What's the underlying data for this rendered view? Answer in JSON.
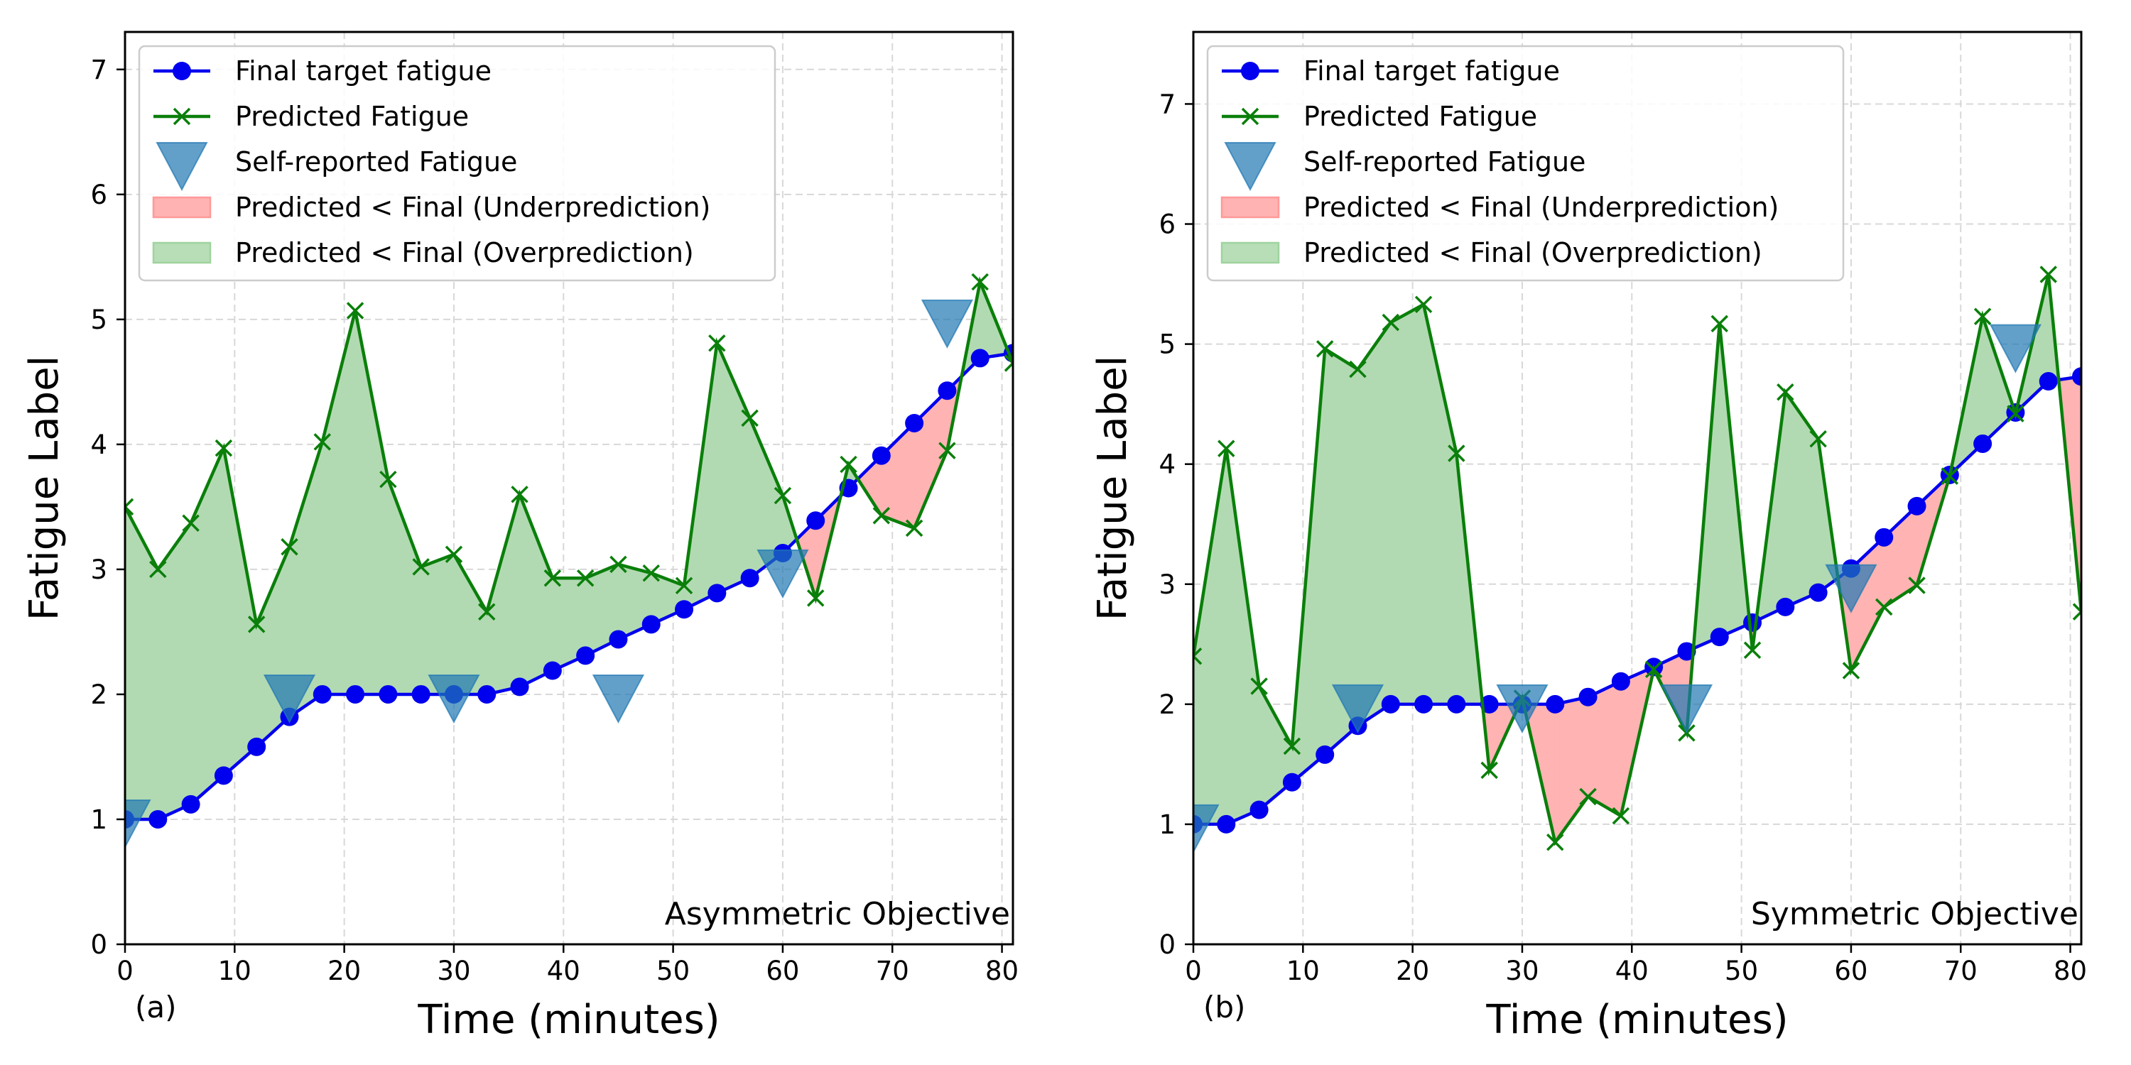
{
  "chart_data": [
    {
      "type": "line",
      "panel_label": "(a)",
      "annotation": "Asymmetric Objective",
      "xlabel": "Time (minutes)",
      "ylabel": "Fatigue Label",
      "xlim": [
        0,
        81
      ],
      "ylim": [
        0,
        7.3
      ],
      "xticks": [
        "0",
        "10",
        "20",
        "30",
        "40",
        "50",
        "60",
        "70",
        "80"
      ],
      "yticks": [
        "0",
        "1",
        "2",
        "3",
        "4",
        "5",
        "6",
        "7"
      ],
      "grid": true,
      "legend_position": "upper-left",
      "legend": [
        {
          "label": "Final target fatigue",
          "kind": "line-circle",
          "color": "#0000ee"
        },
        {
          "label": "Predicted Fatigue",
          "kind": "line-x",
          "color": "#008000"
        },
        {
          "label": "Self-reported Fatigue",
          "kind": "triangle",
          "color": "#1f77b4"
        },
        {
          "label": "Predicted < Final (Underprediction)",
          "kind": "patch",
          "color": "#ff9999"
        },
        {
          "label": "Predicted < Final (Overprediction)",
          "kind": "patch",
          "color": "#9fd39f"
        }
      ],
      "series": [
        {
          "name": "Final target fatigue",
          "x": [
            0,
            3,
            6,
            9,
            12,
            15,
            18,
            21,
            24,
            27,
            30,
            33,
            36,
            39,
            42,
            45,
            48,
            51,
            54,
            57,
            60,
            63,
            66,
            69,
            72,
            75,
            78,
            81
          ],
          "y": [
            1.0,
            1.0,
            1.12,
            1.35,
            1.58,
            1.82,
            2.0,
            2.0,
            2.0,
            2.0,
            2.0,
            2.0,
            2.06,
            2.19,
            2.31,
            2.44,
            2.56,
            2.68,
            2.81,
            2.93,
            3.13,
            3.39,
            3.65,
            3.91,
            4.17,
            4.43,
            4.69,
            4.73
          ]
        },
        {
          "name": "Predicted Fatigue",
          "x": [
            0,
            3,
            6,
            9,
            12,
            15,
            18,
            21,
            24,
            27,
            30,
            33,
            36,
            39,
            42,
            45,
            48,
            51,
            54,
            57,
            60,
            63,
            66,
            69,
            72,
            75,
            78,
            81
          ],
          "y": [
            3.5,
            3.0,
            3.37,
            3.97,
            2.56,
            3.18,
            4.02,
            5.07,
            3.72,
            3.02,
            3.12,
            2.66,
            3.6,
            2.93,
            2.93,
            3.04,
            2.97,
            2.87,
            4.81,
            4.21,
            3.59,
            2.77,
            3.84,
            3.43,
            3.33,
            3.95,
            5.3,
            4.65
          ]
        },
        {
          "name": "Self-reported Fatigue",
          "x": [
            0,
            15,
            30,
            45,
            60,
            75
          ],
          "y": [
            1.0,
            2.0,
            2.0,
            2.0,
            3.0,
            5.0
          ]
        }
      ]
    },
    {
      "type": "line",
      "panel_label": "(b)",
      "annotation": "Symmetric Objective",
      "xlabel": "Time (minutes)",
      "ylabel": "Fatigue Label",
      "xlim": [
        0,
        81
      ],
      "ylim": [
        0,
        7.6
      ],
      "xticks": [
        "0",
        "10",
        "20",
        "30",
        "40",
        "50",
        "60",
        "70",
        "80"
      ],
      "yticks": [
        "0",
        "1",
        "2",
        "3",
        "4",
        "5",
        "6",
        "7"
      ],
      "grid": true,
      "legend_position": "upper-left",
      "legend": [
        {
          "label": "Final target fatigue",
          "kind": "line-circle",
          "color": "#0000ee"
        },
        {
          "label": "Predicted Fatigue",
          "kind": "line-x",
          "color": "#008000"
        },
        {
          "label": "Self-reported Fatigue",
          "kind": "triangle",
          "color": "#1f77b4"
        },
        {
          "label": "Predicted < Final (Underprediction)",
          "kind": "patch",
          "color": "#ff9999"
        },
        {
          "label": "Predicted < Final (Overprediction)",
          "kind": "patch",
          "color": "#9fd39f"
        }
      ],
      "series": [
        {
          "name": "Final target fatigue",
          "x": [
            0,
            3,
            6,
            9,
            12,
            15,
            18,
            21,
            24,
            27,
            30,
            33,
            36,
            39,
            42,
            45,
            48,
            51,
            54,
            57,
            60,
            63,
            66,
            69,
            72,
            75,
            78,
            81
          ],
          "y": [
            1.0,
            1.0,
            1.12,
            1.35,
            1.58,
            1.82,
            2.0,
            2.0,
            2.0,
            2.0,
            2.0,
            2.0,
            2.06,
            2.19,
            2.31,
            2.44,
            2.56,
            2.68,
            2.81,
            2.93,
            3.13,
            3.39,
            3.65,
            3.91,
            4.17,
            4.43,
            4.69,
            4.73
          ]
        },
        {
          "name": "Predicted Fatigue",
          "x": [
            0,
            3,
            6,
            9,
            12,
            15,
            18,
            21,
            24,
            27,
            30,
            33,
            36,
            39,
            42,
            45,
            48,
            51,
            54,
            57,
            60,
            63,
            66,
            69,
            72,
            75,
            78,
            81
          ],
          "y": [
            2.4,
            4.13,
            2.15,
            1.65,
            4.96,
            4.79,
            5.18,
            5.33,
            4.09,
            1.45,
            2.05,
            0.85,
            1.23,
            1.07,
            2.29,
            1.76,
            5.17,
            2.45,
            4.6,
            4.21,
            2.28,
            2.81,
            2.99,
            3.9,
            5.23,
            4.42,
            5.58,
            2.77
          ]
        },
        {
          "name": "Self-reported Fatigue",
          "x": [
            0,
            15,
            30,
            45,
            60,
            75
          ],
          "y": [
            1.0,
            2.0,
            2.0,
            2.0,
            3.0,
            5.0
          ]
        }
      ]
    }
  ]
}
